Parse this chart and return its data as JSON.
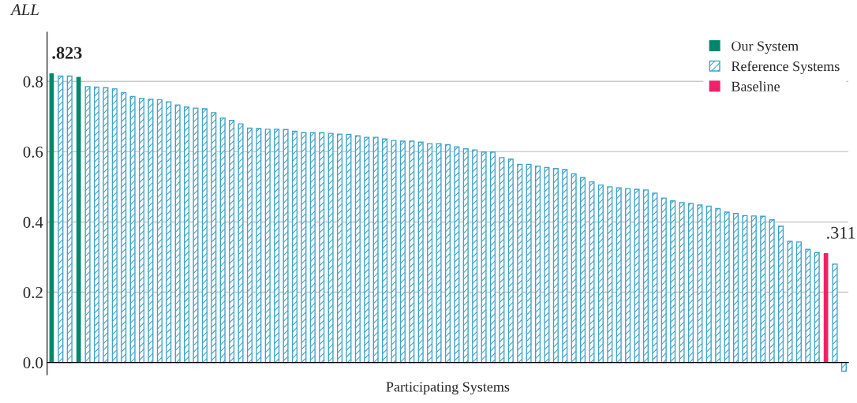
{
  "chart_data": {
    "type": "bar",
    "ylabel": "ALL",
    "xlabel": "Participating Systems",
    "categories": [
      null,
      null,
      null,
      null,
      null,
      null,
      null,
      null,
      null,
      null,
      null,
      null,
      null,
      null,
      null,
      null,
      null,
      null,
      null,
      null,
      null,
      null,
      null,
      null,
      null,
      null,
      null,
      null,
      null,
      null,
      null,
      null,
      null,
      null,
      null,
      null,
      null,
      null,
      null,
      null,
      null,
      null,
      null,
      null,
      null,
      null,
      null,
      null,
      null,
      null,
      null,
      null,
      null,
      null,
      null,
      null,
      null,
      null,
      null,
      null,
      null,
      null,
      null,
      null,
      null,
      null,
      null,
      null,
      null,
      null,
      null,
      null,
      null,
      null,
      null,
      null,
      null,
      null,
      null,
      null,
      null,
      null,
      null,
      null,
      null,
      null,
      null,
      null,
      null
    ],
    "series": [
      {
        "name": "Our System",
        "color": "#00876c",
        "values": [
          0.823,
          null,
          null,
          0.813,
          null,
          null,
          null,
          null,
          null,
          null,
          null,
          null,
          null,
          null,
          null,
          null,
          null,
          null,
          null,
          null,
          null,
          null,
          null,
          null,
          null,
          null,
          null,
          null,
          null,
          null,
          null,
          null,
          null,
          null,
          null,
          null,
          null,
          null,
          null,
          null,
          null,
          null,
          null,
          null,
          null,
          null,
          null,
          null,
          null,
          null,
          null,
          null,
          null,
          null,
          null,
          null,
          null,
          null,
          null,
          null,
          null,
          null,
          null,
          null,
          null,
          null,
          null,
          null,
          null,
          null,
          null,
          null,
          null,
          null,
          null,
          null,
          null,
          null,
          null,
          null,
          null,
          null,
          null,
          null,
          null,
          null,
          null,
          null,
          null
        ],
        "value_labels": [
          ".823",
          null,
          null,
          null,
          null,
          null,
          null,
          null,
          null,
          null,
          null,
          null,
          null,
          null,
          null,
          null,
          null,
          null,
          null,
          null,
          null,
          null,
          null,
          null,
          null,
          null,
          null,
          null,
          null,
          null,
          null,
          null,
          null,
          null,
          null,
          null,
          null,
          null,
          null,
          null,
          null,
          null,
          null,
          null,
          null,
          null,
          null,
          null,
          null,
          null,
          null,
          null,
          null,
          null,
          null,
          null,
          null,
          null,
          null,
          null,
          null,
          null,
          null,
          null,
          null,
          null,
          null,
          null,
          null,
          null,
          null,
          null,
          null,
          null,
          null,
          null,
          null,
          null,
          null,
          null,
          null,
          null,
          null,
          null,
          null,
          null,
          null,
          null,
          null
        ]
      },
      {
        "name": "Reference Systems",
        "color": "#3fa3c8",
        "values": [
          null,
          0.815,
          0.815,
          null,
          0.785,
          0.784,
          0.782,
          0.779,
          0.768,
          0.757,
          0.752,
          0.749,
          0.748,
          0.742,
          0.733,
          0.727,
          0.724,
          0.722,
          0.711,
          0.696,
          0.689,
          0.679,
          0.667,
          0.666,
          0.664,
          0.664,
          0.663,
          0.658,
          0.654,
          0.654,
          0.654,
          0.652,
          0.65,
          0.649,
          0.645,
          0.641,
          0.641,
          0.636,
          0.632,
          0.63,
          0.63,
          0.627,
          0.623,
          0.623,
          0.62,
          0.614,
          0.608,
          0.605,
          0.599,
          0.599,
          0.583,
          0.579,
          0.564,
          0.564,
          0.559,
          0.555,
          0.552,
          0.549,
          0.537,
          0.526,
          0.514,
          0.505,
          0.5,
          0.497,
          0.495,
          0.493,
          0.491,
          0.482,
          0.468,
          0.46,
          0.455,
          0.453,
          0.448,
          0.445,
          0.438,
          0.428,
          0.424,
          0.418,
          0.417,
          0.416,
          0.406,
          0.388,
          0.345,
          0.343,
          0.322,
          0.313,
          null,
          0.28,
          -0.025
        ]
      },
      {
        "name": "Baseline",
        "color": "#ee2266",
        "values": [
          null,
          null,
          null,
          null,
          null,
          null,
          null,
          null,
          null,
          null,
          null,
          null,
          null,
          null,
          null,
          null,
          null,
          null,
          null,
          null,
          null,
          null,
          null,
          null,
          null,
          null,
          null,
          null,
          null,
          null,
          null,
          null,
          null,
          null,
          null,
          null,
          null,
          null,
          null,
          null,
          null,
          null,
          null,
          null,
          null,
          null,
          null,
          null,
          null,
          null,
          null,
          null,
          null,
          null,
          null,
          null,
          null,
          null,
          null,
          null,
          null,
          null,
          null,
          null,
          null,
          null,
          null,
          null,
          null,
          null,
          null,
          null,
          null,
          null,
          null,
          null,
          null,
          null,
          null,
          null,
          null,
          null,
          null,
          null,
          null,
          null,
          0.311,
          null,
          null
        ],
        "value_labels": [
          null,
          null,
          null,
          null,
          null,
          null,
          null,
          null,
          null,
          null,
          null,
          null,
          null,
          null,
          null,
          null,
          null,
          null,
          null,
          null,
          null,
          null,
          null,
          null,
          null,
          null,
          null,
          null,
          null,
          null,
          null,
          null,
          null,
          null,
          null,
          null,
          null,
          null,
          null,
          null,
          null,
          null,
          null,
          null,
          null,
          null,
          null,
          null,
          null,
          null,
          null,
          null,
          null,
          null,
          null,
          null,
          null,
          null,
          null,
          null,
          null,
          null,
          null,
          null,
          null,
          null,
          null,
          null,
          null,
          null,
          null,
          null,
          null,
          null,
          null,
          null,
          null,
          null,
          null,
          null,
          null,
          null,
          null,
          null,
          null,
          null,
          ".311",
          null,
          null
        ]
      }
    ],
    "ylim": [
      -0.035,
      0.94
    ],
    "yticks": [
      {
        "value": 0,
        "label": "0.0"
      },
      {
        "value": 0.2,
        "label": "0.2"
      },
      {
        "value": 0.4,
        "label": "0.4"
      },
      {
        "value": 0.6,
        "label": "0.6"
      },
      {
        "value": 0.8,
        "label": "0.8"
      }
    ],
    "grid": "y",
    "legend": "top right",
    "stacked": true
  }
}
